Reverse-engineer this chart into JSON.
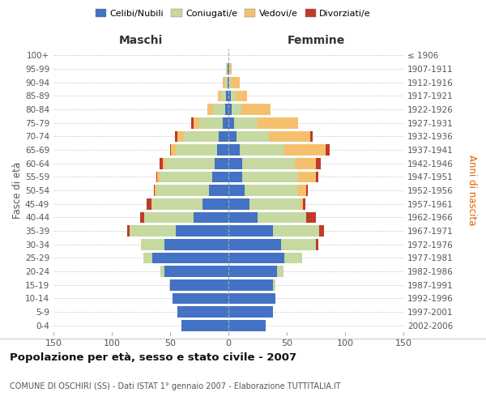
{
  "age_groups": [
    "0-4",
    "5-9",
    "10-14",
    "15-19",
    "20-24",
    "25-29",
    "30-34",
    "35-39",
    "40-44",
    "45-49",
    "50-54",
    "55-59",
    "60-64",
    "65-69",
    "70-74",
    "75-79",
    "80-84",
    "85-89",
    "90-94",
    "95-99",
    "100+"
  ],
  "birth_years": [
    "2002-2006",
    "1997-2001",
    "1992-1996",
    "1987-1991",
    "1982-1986",
    "1977-1981",
    "1972-1976",
    "1967-1971",
    "1962-1966",
    "1957-1961",
    "1952-1956",
    "1947-1951",
    "1942-1946",
    "1937-1941",
    "1932-1936",
    "1927-1931",
    "1922-1926",
    "1917-1921",
    "1912-1916",
    "1907-1911",
    "≤ 1906"
  ],
  "maschi": {
    "celibi": [
      40,
      44,
      48,
      50,
      55,
      65,
      55,
      45,
      30,
      22,
      17,
      14,
      12,
      10,
      8,
      5,
      3,
      2,
      1,
      1,
      0
    ],
    "coniugati": [
      0,
      0,
      0,
      1,
      3,
      8,
      20,
      40,
      42,
      43,
      45,
      45,
      42,
      35,
      30,
      20,
      10,
      4,
      2,
      1,
      0
    ],
    "vedovi": [
      0,
      0,
      0,
      0,
      0,
      0,
      0,
      0,
      0,
      1,
      1,
      2,
      2,
      4,
      6,
      5,
      5,
      3,
      2,
      0,
      0
    ],
    "divorziati": [
      0,
      0,
      0,
      0,
      0,
      0,
      0,
      2,
      4,
      4,
      1,
      1,
      3,
      1,
      2,
      2,
      0,
      0,
      0,
      0,
      0
    ]
  },
  "femmine": {
    "nubili": [
      32,
      38,
      40,
      38,
      42,
      48,
      45,
      38,
      25,
      18,
      14,
      12,
      12,
      10,
      7,
      5,
      3,
      2,
      1,
      1,
      0
    ],
    "coniugate": [
      0,
      0,
      0,
      2,
      5,
      15,
      30,
      40,
      42,
      44,
      45,
      48,
      45,
      38,
      28,
      20,
      8,
      4,
      1,
      0,
      0
    ],
    "vedove": [
      0,
      0,
      0,
      0,
      0,
      0,
      0,
      0,
      0,
      2,
      8,
      15,
      18,
      35,
      35,
      35,
      25,
      10,
      8,
      2,
      0
    ],
    "divorziate": [
      0,
      0,
      0,
      0,
      0,
      0,
      2,
      4,
      8,
      2,
      1,
      2,
      4,
      4,
      2,
      0,
      0,
      0,
      0,
      0,
      0
    ]
  },
  "colors": {
    "celibi": "#4472c4",
    "coniugati": "#c5d9a0",
    "vedovi": "#f5c06e",
    "divorziati": "#c0392b"
  },
  "xlim": 150,
  "title": "Popolazione per età, sesso e stato civile - 2007",
  "subtitle": "COMUNE DI OSCHIRI (SS) - Dati ISTAT 1° gennaio 2007 - Elaborazione TUTTITALIA.IT",
  "ylabel_left": "Fasce di età",
  "ylabel_right": "Anni di nascita",
  "xlabel_maschi": "Maschi",
  "xlabel_femmine": "Femmine",
  "legend_labels": [
    "Celibi/Nubili",
    "Coniugati/e",
    "Vedovi/e",
    "Divorziati/e"
  ],
  "background_color": "#ffffff",
  "xticks": [
    150,
    100,
    50,
    0,
    50,
    100,
    150
  ]
}
